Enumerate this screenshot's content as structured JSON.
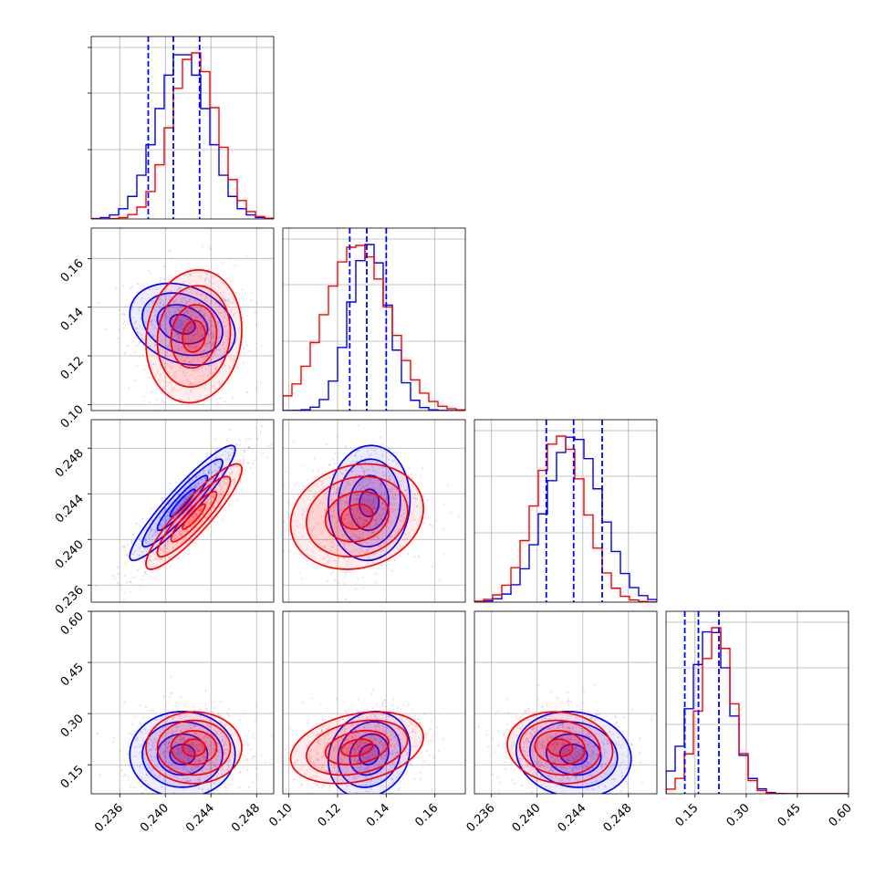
{
  "chart_data": {
    "type": "corner",
    "grid": true,
    "legend": "none",
    "colors": {
      "series_a": "#ff0000",
      "series_b": "#0000ff",
      "grid": "#b0b0b0",
      "axes": "#000000"
    },
    "series": [
      {
        "color": "#0000ff",
        "quantile_lines": [
          [
            0.2385,
            0.2407,
            0.243
          ],
          [
            0.125,
            0.132,
            0.14
          ],
          [
            0.2408,
            0.2432,
            0.2457
          ],
          [
            0.12,
            0.16,
            0.22
          ]
        ],
        "means": [
          0.2415,
          0.133,
          0.2432,
          0.18
        ],
        "sds": [
          0.0022,
          0.008,
          0.0024,
          0.06
        ]
      },
      {
        "color": "#ff0000",
        "means": [
          0.2425,
          0.128,
          0.242,
          0.2
        ],
        "sds": [
          0.002,
          0.013,
          0.0022,
          0.05
        ]
      }
    ],
    "params": [
      {
        "range": [
          0.2335,
          0.2495
        ],
        "ticks": [
          "0.236",
          "0.240",
          "0.244",
          "0.248"
        ]
      },
      {
        "range": [
          0.0975,
          0.1725
        ],
        "ticks": [
          "0.10",
          "0.12",
          "0.14",
          "0.16"
        ]
      },
      {
        "range": [
          0.2345,
          0.2505
        ],
        "ticks": [
          "0.236",
          "0.240",
          "0.244",
          "0.248"
        ]
      },
      {
        "range": [
          0.065,
          0.6
        ],
        "ticks": [
          "0.15",
          "0.30",
          "0.45",
          "0.60"
        ]
      }
    ],
    "correlations": [
      {
        "pair": [
          1,
          0
        ],
        "blue": -0.25,
        "red": 0.1
      },
      {
        "pair": [
          2,
          0
        ],
        "blue": 0.93,
        "red": 0.9
      },
      {
        "pair": [
          2,
          1
        ],
        "blue": 0.05,
        "red": 0.15
      },
      {
        "pair": [
          3,
          0
        ],
        "blue": 0.0,
        "red": 0.0
      },
      {
        "pair": [
          3,
          1
        ],
        "blue": 0.15,
        "red": 0.3
      },
      {
        "pair": [
          3,
          2
        ],
        "blue": -0.1,
        "red": -0.1
      }
    ],
    "contour_levels": [
      0.5,
      1.0,
      1.6,
      2.1
    ]
  }
}
